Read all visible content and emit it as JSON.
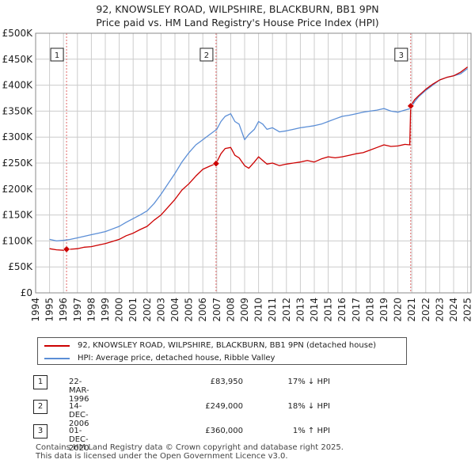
{
  "header": {
    "title_line1": "92, KNOWSLEY ROAD, WILPSHIRE, BLACKBURN, BB1 9PN",
    "title_line2": "Price paid vs. HM Land Registry's House Price Index (HPI)"
  },
  "colors": {
    "property": "#cc0000",
    "hpi": "#5b8ed6",
    "grid": "#cccccc",
    "axes": "#888888",
    "marker_line": "#e06666"
  },
  "chart_data": {
    "type": "line",
    "title": "Price paid vs. HM Land Registry's House Price Index (HPI)",
    "xlabel": "",
    "ylabel": "",
    "xlim": [
      1994.0,
      2025.25
    ],
    "ylim": [
      0,
      500000
    ],
    "x_ticks": [
      "1994",
      "1995",
      "1996",
      "1997",
      "1998",
      "1999",
      "2000",
      "2001",
      "2002",
      "2003",
      "2004",
      "2005",
      "2006",
      "2007",
      "2008",
      "2009",
      "2010",
      "2011",
      "2012",
      "2013",
      "2014",
      "2015",
      "2016",
      "2017",
      "2018",
      "2019",
      "2020",
      "2021",
      "2022",
      "2023",
      "2024",
      "2025"
    ],
    "y_ticks": [
      {
        "value": 0,
        "label": "£0"
      },
      {
        "value": 50000,
        "label": "£50K"
      },
      {
        "value": 100000,
        "label": "£100K"
      },
      {
        "value": 150000,
        "label": "£150K"
      },
      {
        "value": 200000,
        "label": "£200K"
      },
      {
        "value": 250000,
        "label": "£250K"
      },
      {
        "value": 300000,
        "label": "£300K"
      },
      {
        "value": 350000,
        "label": "£350K"
      },
      {
        "value": 400000,
        "label": "£400K"
      },
      {
        "value": 450000,
        "label": "£450K"
      },
      {
        "value": 500000,
        "label": "£500K"
      }
    ],
    "series": [
      {
        "name": "92, KNOWSLEY ROAD, WILPSHIRE, BLACKBURN, BB1 9PN (detached house)",
        "color": "#cc0000",
        "x": [
          1995.0,
          1995.5,
          1996.0,
          1996.22,
          1996.5,
          1997.0,
          1997.5,
          1998.0,
          1998.5,
          1999.0,
          1999.5,
          2000.0,
          2000.5,
          2001.0,
          2001.5,
          2002.0,
          2002.5,
          2003.0,
          2003.5,
          2004.0,
          2004.5,
          2005.0,
          2005.5,
          2006.0,
          2006.5,
          2006.95,
          2007.3,
          2007.6,
          2008.0,
          2008.3,
          2008.6,
          2009.0,
          2009.3,
          2009.7,
          2010.0,
          2010.3,
          2010.6,
          2011.0,
          2011.5,
          2012.0,
          2012.5,
          2013.0,
          2013.5,
          2014.0,
          2014.5,
          2015.0,
          2015.5,
          2016.0,
          2016.5,
          2017.0,
          2017.5,
          2018.0,
          2018.5,
          2019.0,
          2019.5,
          2020.0,
          2020.5,
          2020.85,
          2020.92,
          2021.2,
          2021.5,
          2022.0,
          2022.5,
          2023.0,
          2023.5,
          2024.0,
          2024.5,
          2025.0
        ],
        "y": [
          85000,
          83000,
          82000,
          83950,
          84000,
          85000,
          88000,
          89000,
          92000,
          95000,
          99000,
          103000,
          110000,
          115000,
          122000,
          128000,
          140000,
          150000,
          165000,
          180000,
          198000,
          210000,
          225000,
          238000,
          244000,
          249000,
          268000,
          278000,
          280000,
          265000,
          260000,
          245000,
          240000,
          252000,
          262000,
          255000,
          248000,
          250000,
          245000,
          248000,
          250000,
          252000,
          255000,
          252000,
          258000,
          262000,
          260000,
          262000,
          265000,
          268000,
          270000,
          275000,
          280000,
          285000,
          282000,
          283000,
          286000,
          285000,
          360000,
          372000,
          380000,
          392000,
          402000,
          410000,
          415000,
          418000,
          425000,
          435000
        ]
      },
      {
        "name": "HPI: Average price, detached house, Ribble Valley",
        "color": "#5b8ed6",
        "x": [
          1995.0,
          1995.5,
          1996.0,
          1996.5,
          1997.0,
          1997.5,
          1998.0,
          1998.5,
          1999.0,
          1999.5,
          2000.0,
          2000.5,
          2001.0,
          2001.5,
          2002.0,
          2002.5,
          2003.0,
          2003.5,
          2004.0,
          2004.5,
          2005.0,
          2005.5,
          2006.0,
          2006.5,
          2007.0,
          2007.3,
          2007.6,
          2008.0,
          2008.3,
          2008.6,
          2009.0,
          2009.3,
          2009.7,
          2010.0,
          2010.3,
          2010.6,
          2011.0,
          2011.5,
          2012.0,
          2012.5,
          2013.0,
          2013.5,
          2014.0,
          2014.5,
          2015.0,
          2015.5,
          2016.0,
          2016.5,
          2017.0,
          2017.5,
          2018.0,
          2018.5,
          2019.0,
          2019.5,
          2020.0,
          2020.5,
          2020.9,
          2021.2,
          2021.5,
          2022.0,
          2022.5,
          2023.0,
          2023.5,
          2024.0,
          2024.5,
          2025.0
        ],
        "y": [
          103000,
          100000,
          101000,
          103000,
          106000,
          109000,
          112000,
          115000,
          118000,
          123000,
          128000,
          136000,
          143000,
          150000,
          158000,
          172000,
          190000,
          210000,
          230000,
          252000,
          270000,
          285000,
          295000,
          305000,
          315000,
          330000,
          340000,
          345000,
          330000,
          325000,
          295000,
          305000,
          315000,
          330000,
          325000,
          315000,
          318000,
          310000,
          312000,
          315000,
          318000,
          320000,
          322000,
          325000,
          330000,
          335000,
          340000,
          342000,
          345000,
          348000,
          350000,
          352000,
          355000,
          350000,
          348000,
          352000,
          355000,
          368000,
          378000,
          390000,
          400000,
          410000,
          415000,
          418000,
          422000,
          432000
        ]
      }
    ],
    "markers": [
      {
        "label": "1",
        "x": 1996.22,
        "y": 83950
      },
      {
        "label": "2",
        "x": 2006.95,
        "y": 249000
      },
      {
        "label": "3",
        "x": 2020.92,
        "y": 360000
      }
    ]
  },
  "legend": {
    "items": [
      {
        "label": "92, KNOWSLEY ROAD, WILPSHIRE, BLACKBURN, BB1 9PN (detached house)"
      },
      {
        "label": "HPI: Average price, detached house, Ribble Valley"
      }
    ]
  },
  "transactions": [
    {
      "num": "1",
      "date": "22-MAR-1996",
      "price": "£83,950",
      "hpi": "17% ↓ HPI"
    },
    {
      "num": "2",
      "date": "14-DEC-2006",
      "price": "£249,000",
      "hpi": "18% ↓ HPI"
    },
    {
      "num": "3",
      "date": "01-DEC-2020",
      "price": "£360,000",
      "hpi": "1% ↑ HPI"
    }
  ],
  "footer": {
    "line1": "Contains HM Land Registry data © Crown copyright and database right 2025.",
    "line2": "This data is licensed under the Open Government Licence v3.0."
  }
}
